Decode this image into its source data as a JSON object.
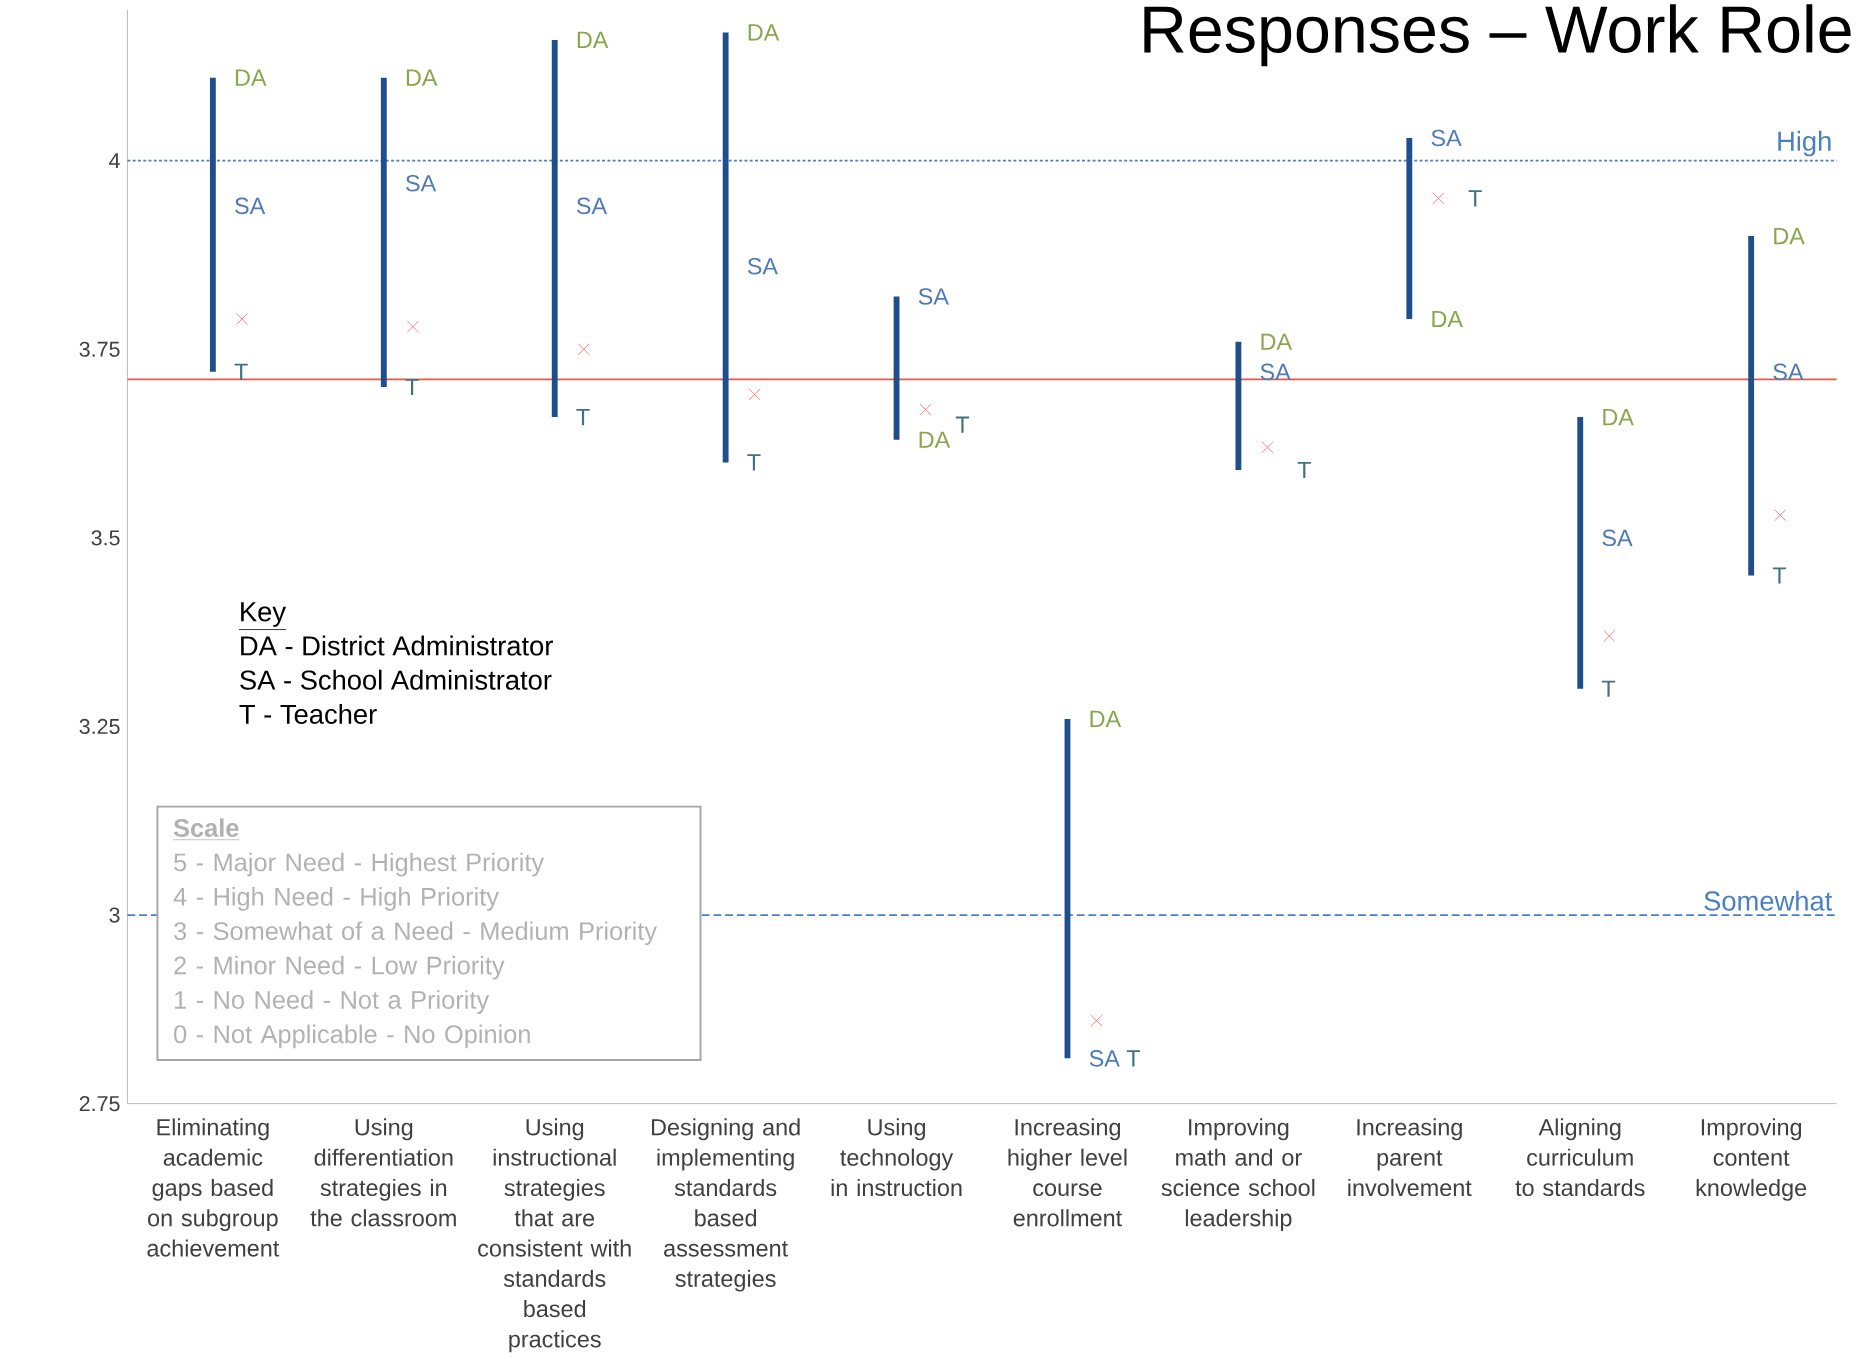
{
  "chart_data": {
    "type": "bar",
    "title": "Responses – Work Role",
    "categories": [
      "Eliminating academic gaps based on subgroup achievement",
      "Using differentiation strategies in the classroom",
      "Using instructional strategies that are consistent with standards based practices",
      "Designing and implementing standards based assessment strategies",
      "Using technology in instruction",
      "Increasing higher level course enrollment",
      "Improving math and or science school leadership",
      "Increasing parent involvement",
      "Aligning curriculum to standards",
      "Improving content knowledge"
    ],
    "series": [
      {
        "color": "#1f4e8c",
        "base": [
          3.72,
          3.7,
          3.66,
          3.6,
          3.63,
          2.81,
          3.59,
          3.79,
          3.3,
          3.45
        ],
        "values": [
          0.39,
          0.41,
          0.5,
          0.57,
          0.19,
          0.45,
          0.17,
          0.24,
          0.36,
          0.45
        ]
      },
      {
        "type": "scatter",
        "marker": "cross",
        "color": "#ff6060",
        "values": [
          3.79,
          3.78,
          3.75,
          3.69,
          3.67,
          2.86,
          3.62,
          3.95,
          3.37,
          3.53
        ]
      }
    ],
    "ylim": [
      2.75,
      4.2
    ],
    "yticks": [
      2.75,
      3,
      3.25,
      3.5,
      3.75,
      4
    ],
    "ref_lines": [
      {
        "axis": "y",
        "value": 4,
        "label": "High",
        "color": "#4a7fc6",
        "line_style": "dotted"
      },
      {
        "axis": "y",
        "value": 3,
        "label": "Somewhat",
        "color": "#4a7fc6",
        "line_style": "dashed"
      },
      {
        "axis": "y",
        "value": 3.71,
        "color": "#e05a50",
        "line_style": "solid"
      }
    ],
    "annotations": [
      "Key",
      "DA - District Administrator",
      "SA - School Administrator",
      "T - Teacher",
      "Scale",
      "5 - Major Need - Highest Priority",
      "4 - High Need - High Priority",
      "3 - Somewhat of a Need - Medium Priority",
      "2 - Minor Need - Low Priority",
      "1 - No Need - Not a Priority",
      "0 - Not Applicable - No Opinion",
      {
        "text": "DA",
        "x": "Eliminating academic gaps based on subgroup achievement",
        "y": 4.11
      },
      {
        "text": "SA",
        "x": "Eliminating academic gaps based on subgroup achievement",
        "y": 3.94
      },
      {
        "text": "T",
        "x": "Eliminating academic gaps based on subgroup achievement",
        "y": 3.72
      },
      {
        "text": "DA",
        "x": "Using differentiation strategies in the classroom",
        "y": 4.11
      },
      {
        "text": "SA",
        "x": "Using differentiation strategies in the classroom",
        "y": 3.97
      },
      {
        "text": "T",
        "x": "Using differentiation strategies in the classroom",
        "y": 3.7
      },
      {
        "text": "DA",
        "x": "Using instructional strategies that are consistent with standards based practices",
        "y": 4.16
      },
      {
        "text": "SA",
        "x": "Using instructional strategies that are consistent with standards based practices",
        "y": 3.94
      },
      {
        "text": "T",
        "x": "Using instructional strategies that are consistent with standards based practices",
        "y": 3.66
      },
      {
        "text": "DA",
        "x": "Designing and implementing standards based assessment strategies",
        "y": 4.17
      },
      {
        "text": "SA",
        "x": "Designing and implementing standards based assessment strategies",
        "y": 3.86
      },
      {
        "text": "T",
        "x": "Designing and implementing standards based assessment strategies",
        "y": 3.6
      },
      {
        "text": "DA",
        "x": "Using technology in instruction",
        "y": 3.63
      },
      {
        "text": "SA",
        "x": "Using technology in instruction",
        "y": 3.82
      },
      {
        "text": "T",
        "x": "Using technology in instruction",
        "y": 3.65
      },
      {
        "text": "DA",
        "x": "Increasing higher level course enrollment",
        "y": 3.26
      },
      {
        "text": "SA",
        "x": "Increasing higher level course enrollment",
        "y": 2.81
      },
      {
        "text": "T",
        "x": "Increasing higher level course enrollment",
        "y": 2.81
      },
      {
        "text": "DA",
        "x": "Improving math and or science school leadership",
        "y": 3.76
      },
      {
        "text": "SA",
        "x": "Improving math and or science school leadership",
        "y": 3.72
      },
      {
        "text": "T",
        "x": "Improving math and or science school leadership",
        "y": 3.59
      },
      {
        "text": "DA",
        "x": "Increasing parent involvement",
        "y": 3.79
      },
      {
        "text": "SA",
        "x": "Increasing parent involvement",
        "y": 4.03
      },
      {
        "text": "T",
        "x": "Increasing parent involvement",
        "y": 3.95
      },
      {
        "text": "DA",
        "x": "Aligning curriculum to standards",
        "y": 3.66
      },
      {
        "text": "SA",
        "x": "Aligning curriculum to standards",
        "y": 3.5
      },
      {
        "text": "T",
        "x": "Aligning curriculum to standards",
        "y": 3.3
      },
      {
        "text": "DA",
        "x": "Improving content knowledge",
        "y": 3.9
      },
      {
        "text": "SA",
        "x": "Improving content knowledge",
        "y": 3.72
      },
      {
        "text": "T",
        "x": "Improving content knowledge",
        "y": 3.45
      }
    ],
    "grid": false
  }
}
